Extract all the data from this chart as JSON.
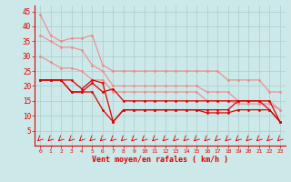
{
  "x": [
    0,
    1,
    2,
    3,
    4,
    5,
    6,
    7,
    8,
    9,
    10,
    11,
    12,
    13,
    14,
    15,
    16,
    17,
    18,
    19,
    20,
    21,
    22,
    23
  ],
  "y_light1": [
    44,
    37,
    35,
    36,
    36,
    37,
    27,
    25,
    25,
    25,
    25,
    25,
    25,
    25,
    25,
    25,
    25,
    25,
    22,
    22,
    22,
    22,
    18,
    18
  ],
  "y_light2": [
    37,
    35,
    33,
    33,
    32,
    27,
    25,
    20,
    20,
    20,
    20,
    20,
    20,
    20,
    20,
    20,
    18,
    18,
    18,
    15,
    15,
    15,
    15,
    12
  ],
  "y_light3": [
    30,
    28,
    26,
    26,
    25,
    22,
    22,
    18,
    18,
    18,
    18,
    18,
    18,
    18,
    18,
    18,
    15,
    15,
    15,
    14,
    14,
    14,
    14,
    12
  ],
  "y_dark1": [
    22,
    22,
    22,
    22,
    19,
    22,
    21,
    8,
    12,
    12,
    12,
    12,
    12,
    12,
    12,
    12,
    12,
    12,
    12,
    15,
    15,
    15,
    12,
    8
  ],
  "y_dark2": [
    22,
    22,
    22,
    18,
    18,
    21,
    18,
    19,
    15,
    15,
    15,
    15,
    15,
    15,
    15,
    15,
    15,
    15,
    15,
    15,
    15,
    15,
    15,
    8
  ],
  "y_dark3": [
    22,
    22,
    22,
    18,
    18,
    18,
    12,
    8,
    12,
    12,
    12,
    12,
    12,
    12,
    12,
    12,
    11,
    11,
    11,
    12,
    12,
    12,
    12,
    8
  ],
  "bg_color": "#cce8e8",
  "grid_color": "#aacece",
  "line_light_color": "#f08888",
  "line_dark_color": "#dd0000",
  "xlabel": "Vent moyen/en rafales ( km/h )",
  "ylim": [
    0,
    47
  ],
  "xlim": [
    -0.5,
    23.5
  ],
  "yticks": [
    5,
    10,
    15,
    20,
    25,
    30,
    35,
    40,
    45
  ],
  "xticks": [
    0,
    1,
    2,
    3,
    4,
    5,
    6,
    7,
    8,
    9,
    10,
    11,
    12,
    13,
    14,
    15,
    16,
    17,
    18,
    19,
    20,
    21,
    22,
    23
  ]
}
